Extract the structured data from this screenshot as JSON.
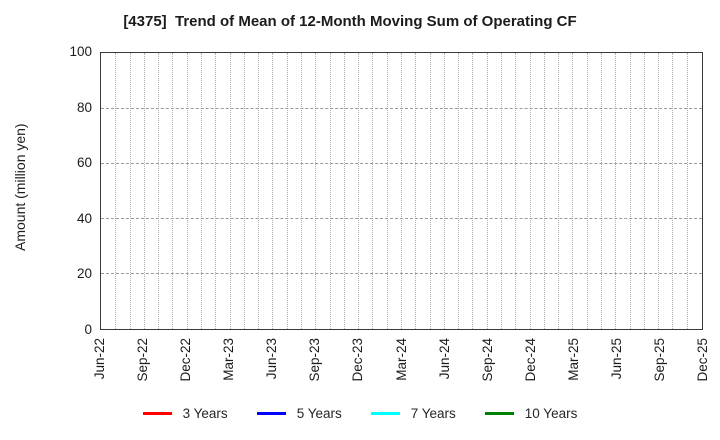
{
  "chart_data": {
    "type": "line",
    "title": "[4375]  Trend of Mean of 12-Month Moving Sum of Operating CF",
    "ylabel": "Amount (million yen)",
    "ylim": [
      0,
      100
    ],
    "yticks": [
      0,
      20,
      40,
      60,
      80,
      100
    ],
    "x_tick_labels": [
      "Jun-22",
      "Sep-22",
      "Dec-22",
      "Mar-23",
      "Jun-23",
      "Sep-23",
      "Dec-23",
      "Mar-24",
      "Jun-24",
      "Sep-24",
      "Dec-24",
      "Mar-25",
      "Jun-25",
      "Sep-25",
      "Dec-25"
    ],
    "months_between_labels": 3,
    "grid": true,
    "gridline_style": {
      "vertical": "dotted monthly",
      "horizontal": "dashed at yticks"
    },
    "legend_position": "bottom",
    "series": [
      {
        "name": "3 Years",
        "color": "#ff0000",
        "values": []
      },
      {
        "name": "5 Years",
        "color": "#0000ff",
        "values": []
      },
      {
        "name": "7 Years",
        "color": "#00ffff",
        "values": []
      },
      {
        "name": "10 Years",
        "color": "#008000",
        "values": []
      }
    ]
  }
}
